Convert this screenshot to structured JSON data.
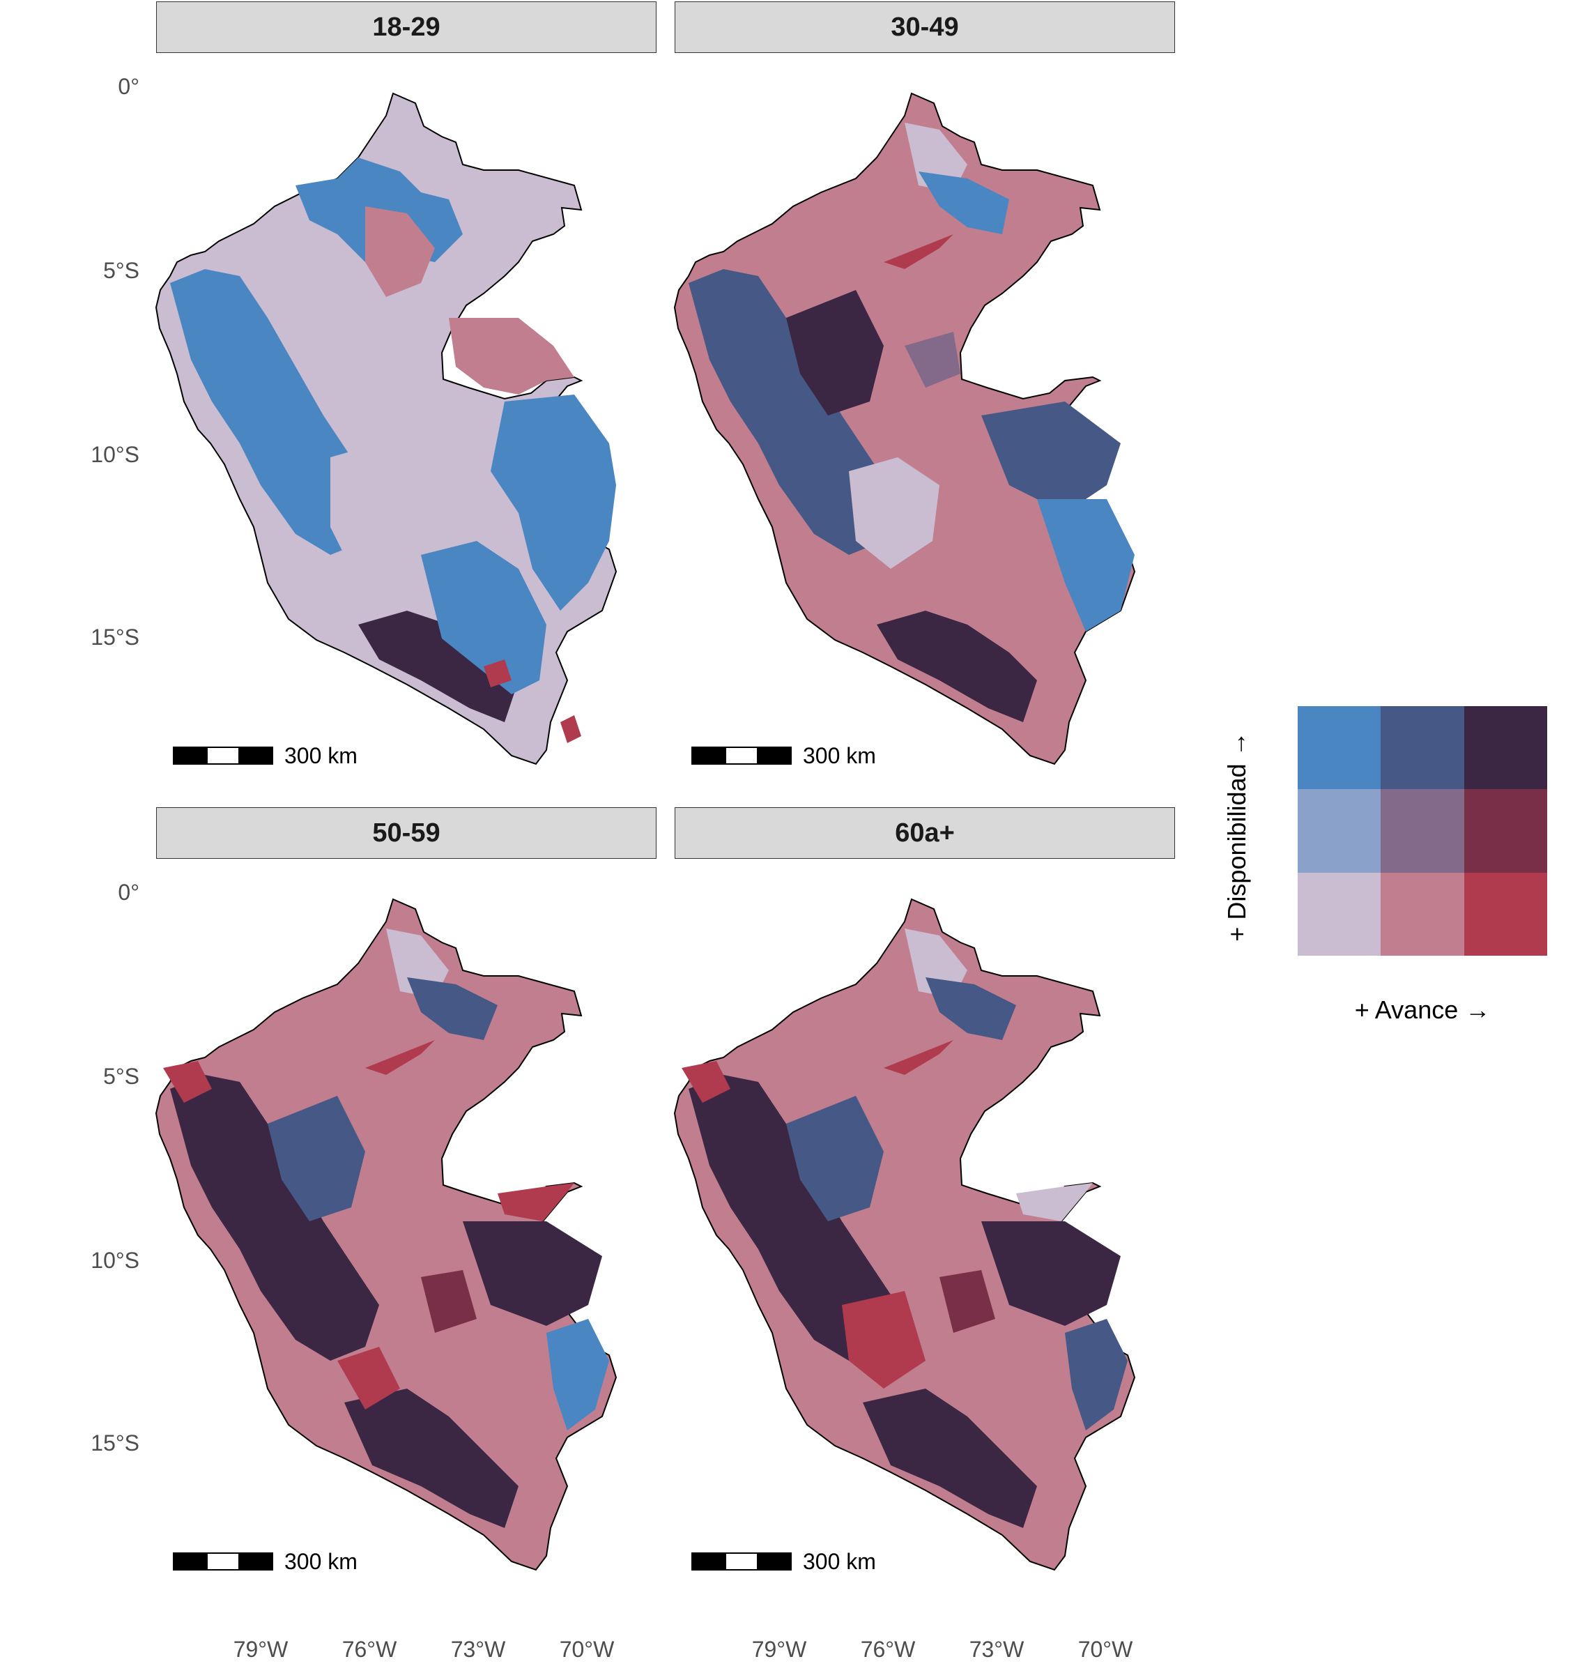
{
  "figure": {
    "type": "faceted bivariate choropleth map",
    "region": "Peru",
    "panels": [
      {
        "title": "18-29",
        "dominant_classes": [
          "light-blue",
          "pale-lilac",
          "mid-pink",
          "dark-navy"
        ]
      },
      {
        "title": "30-49",
        "dominant_classes": [
          "mid-pink",
          "dark-blue",
          "light-blue",
          "dark-purple"
        ]
      },
      {
        "title": "50-59",
        "dominant_classes": [
          "dark-purple",
          "dark-blue",
          "mid-pink",
          "red"
        ]
      },
      {
        "title": "60a+",
        "dominant_classes": [
          "dark-purple",
          "dark-blue",
          "mid-pink",
          "red"
        ]
      }
    ],
    "y_ticks": [
      "0°",
      "5°S",
      "10°S",
      "15°S"
    ],
    "x_ticks": [
      "79°W",
      "76°W",
      "73°W",
      "70°W"
    ],
    "scale_bar_label": "300 km"
  },
  "legend": {
    "x_label": "+ Avance  →",
    "y_label": "+ Disponibilidad  →",
    "grid": [
      [
        "#4a86c1",
        "#465886",
        "#3b2744"
      ],
      [
        "#8aa1c9",
        "#83698a",
        "#782f47"
      ],
      [
        "#cbbdd1",
        "#c07e8e",
        "#b13b4e"
      ]
    ]
  },
  "colors": {
    "pale": "#cbbdd1",
    "pink": "#c07e8e",
    "red": "#b13b4e",
    "lightblue": "#8aa1c9",
    "mauve": "#83698a",
    "wine": "#782f47",
    "blue": "#4a86c1",
    "darkblue": "#465886",
    "darkpurple": "#3b2744",
    "strip_bg": "#d9d9d9",
    "axis_text": "#4d4d4d"
  }
}
